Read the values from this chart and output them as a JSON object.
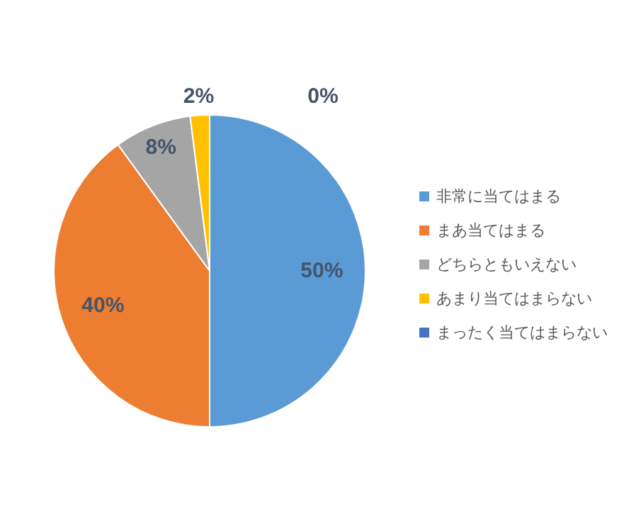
{
  "chart_data": {
    "type": "pie",
    "categories": [
      "非常に当てはまる",
      "まあ当てはまる",
      "どちらともいえない",
      "あまり当てはまらない",
      "まったく当てはまらない"
    ],
    "values": [
      50,
      40,
      8,
      2,
      0
    ],
    "colors": [
      "#5b9bd5",
      "#ed7d31",
      "#a5a5a5",
      "#ffc000",
      "#4472c4"
    ],
    "value_labels": [
      "50%",
      "40%",
      "8%",
      "2%",
      "0%"
    ],
    "legend": "right"
  }
}
